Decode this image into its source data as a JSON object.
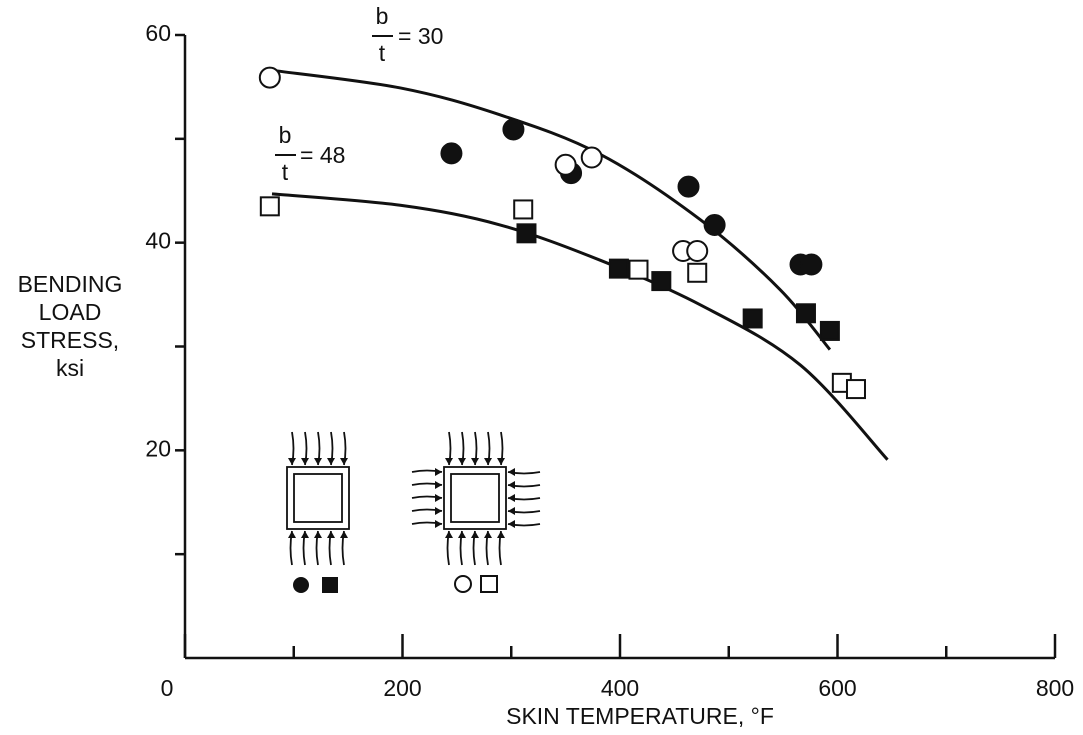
{
  "chart_data": {
    "type": "scatter",
    "xlabel": "SKIN TEMPERATURE, °F",
    "ylabel": [
      "BENDING",
      "LOAD",
      "STRESS,",
      "ksi"
    ],
    "xlim": [
      0,
      800
    ],
    "ylim": [
      0,
      60
    ],
    "xticks": [
      0,
      200,
      400,
      600,
      800
    ],
    "xminorticks": [
      100,
      300,
      500,
      700
    ],
    "yticks": [
      20,
      40,
      60
    ],
    "yminorticks": [
      10,
      30,
      50
    ],
    "annotations": [
      {
        "numerator": "b",
        "denominator": "t",
        "text": "= 30"
      },
      {
        "numerator": "b",
        "denominator": "t",
        "text": "= 48"
      }
    ],
    "series": [
      {
        "style": "line",
        "color": "#111",
        "x": [
          80,
          198,
          290,
          382,
          474,
          547,
          593
        ],
        "values": [
          56.6,
          54.9,
          52.3,
          48.5,
          42.2,
          35.5,
          29.7
        ]
      },
      {
        "style": "line",
        "color": "#111",
        "x": [
          80,
          198,
          290,
          382,
          474,
          566,
          646
        ],
        "values": [
          44.7,
          43.6,
          41.7,
          38.3,
          34.0,
          28.2,
          19.1
        ]
      },
      {
        "style": "marker",
        "marker": "circle",
        "filled": true,
        "color": "#111",
        "x": [
          245,
          302,
          355,
          463,
          487,
          566,
          576
        ],
        "values": [
          48.6,
          50.9,
          46.7,
          45.4,
          41.7,
          37.9,
          37.9
        ]
      },
      {
        "style": "marker",
        "marker": "circle",
        "filled": false,
        "color": "#111",
        "x": [
          78,
          350,
          374,
          458,
          471
        ],
        "values": [
          55.9,
          47.5,
          48.2,
          39.2,
          39.2
        ]
      },
      {
        "style": "marker",
        "marker": "square",
        "filled": true,
        "color": "#111",
        "x": [
          314,
          399,
          438,
          522,
          571,
          593
        ],
        "values": [
          40.9,
          37.5,
          36.3,
          32.7,
          33.2,
          31.5
        ]
      },
      {
        "style": "marker",
        "marker": "square",
        "filled": false,
        "color": "#111",
        "x": [
          78,
          311,
          417,
          471,
          604,
          617
        ],
        "values": [
          43.5,
          43.2,
          37.4,
          37.1,
          26.5,
          25.9
        ]
      }
    ]
  }
}
